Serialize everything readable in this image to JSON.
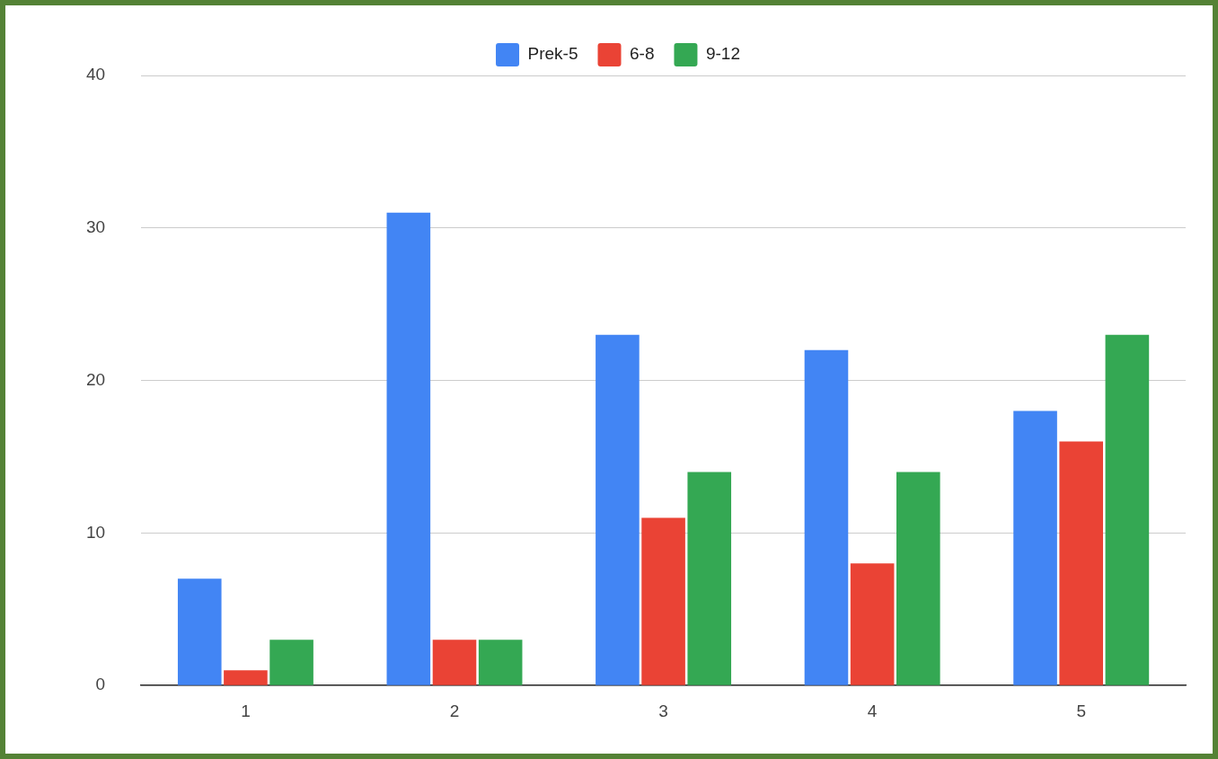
{
  "chart_data": {
    "type": "bar",
    "categories": [
      "1",
      "2",
      "3",
      "4",
      "5"
    ],
    "series": [
      {
        "name": "Prek-5",
        "color": "#4285f4",
        "values": [
          7,
          31,
          23,
          22,
          18
        ]
      },
      {
        "name": "6-8",
        "color": "#ea4335",
        "values": [
          1,
          3,
          11,
          8,
          16
        ]
      },
      {
        "name": "9-12",
        "color": "#34a853",
        "values": [
          3,
          3,
          14,
          14,
          23
        ]
      }
    ],
    "ylim": [
      0,
      40
    ],
    "yticks": [
      0,
      10,
      20,
      30,
      40
    ],
    "grid": "y",
    "legend": "top"
  }
}
